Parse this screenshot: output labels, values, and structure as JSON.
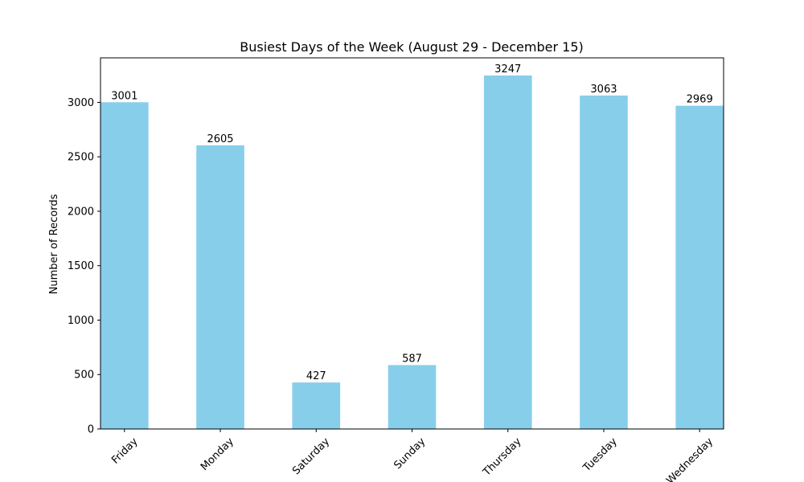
{
  "chart_data": {
    "type": "bar",
    "title": "Busiest Days of the Week (August 29 - December 15)",
    "xlabel": "",
    "ylabel": "Number of Records",
    "categories": [
      "Friday",
      "Monday",
      "Saturday",
      "Sunday",
      "Thursday",
      "Tuesday",
      "Wednesday"
    ],
    "values": [
      3001,
      2605,
      427,
      587,
      3247,
      3063,
      2969
    ],
    "data_labels": [
      "3001",
      "2605",
      "427",
      "587",
      "3247",
      "3063",
      "2969"
    ],
    "ylim": [
      0,
      3409
    ],
    "yticks": [
      0,
      500,
      1000,
      1500,
      2000,
      2500,
      3000
    ],
    "ytick_labels": [
      "0",
      "500",
      "1000",
      "1500",
      "2000",
      "2500",
      "3000"
    ],
    "grid": false,
    "legend": "none",
    "bar_color": "#87ceeb",
    "xtick_rotation": 45
  }
}
